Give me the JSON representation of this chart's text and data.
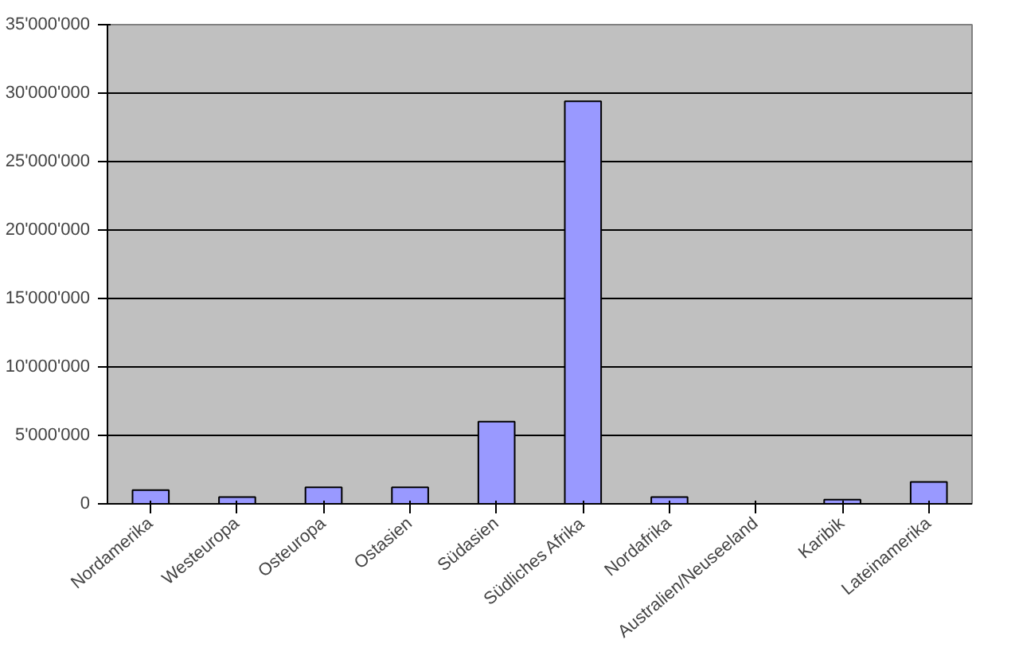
{
  "chart_data": {
    "type": "bar",
    "categories": [
      "Nordamerika",
      "Westeuropa",
      "Osteuropa",
      "Ostasien",
      "Südasien",
      "Südliches Afrika",
      "Nordafrika",
      "Australien/Neuseeland",
      "Karibik",
      "Lateinamerika"
    ],
    "values": [
      1000000,
      500000,
      1200000,
      1200000,
      6000000,
      29400000,
      500000,
      null,
      300000,
      1600000
    ],
    "color": "#9999ff",
    "ylim": [
      0,
      35000000
    ],
    "yticks": [
      0,
      {
        "value": 5000000,
        "label": "5'000'000"
      },
      {
        "value": 10000000,
        "label": "10'000'000"
      },
      {
        "value": 15000000,
        "label": "15'000'000"
      },
      {
        "value": 20000000,
        "label": "20'000'000"
      },
      {
        "value": 25000000,
        "label": "25'000'000"
      },
      {
        "value": 30000000,
        "label": "30'000'000"
      },
      {
        "value": 35000000,
        "label": "35'000'000"
      }
    ],
    "grid": "y",
    "legend": false
  }
}
